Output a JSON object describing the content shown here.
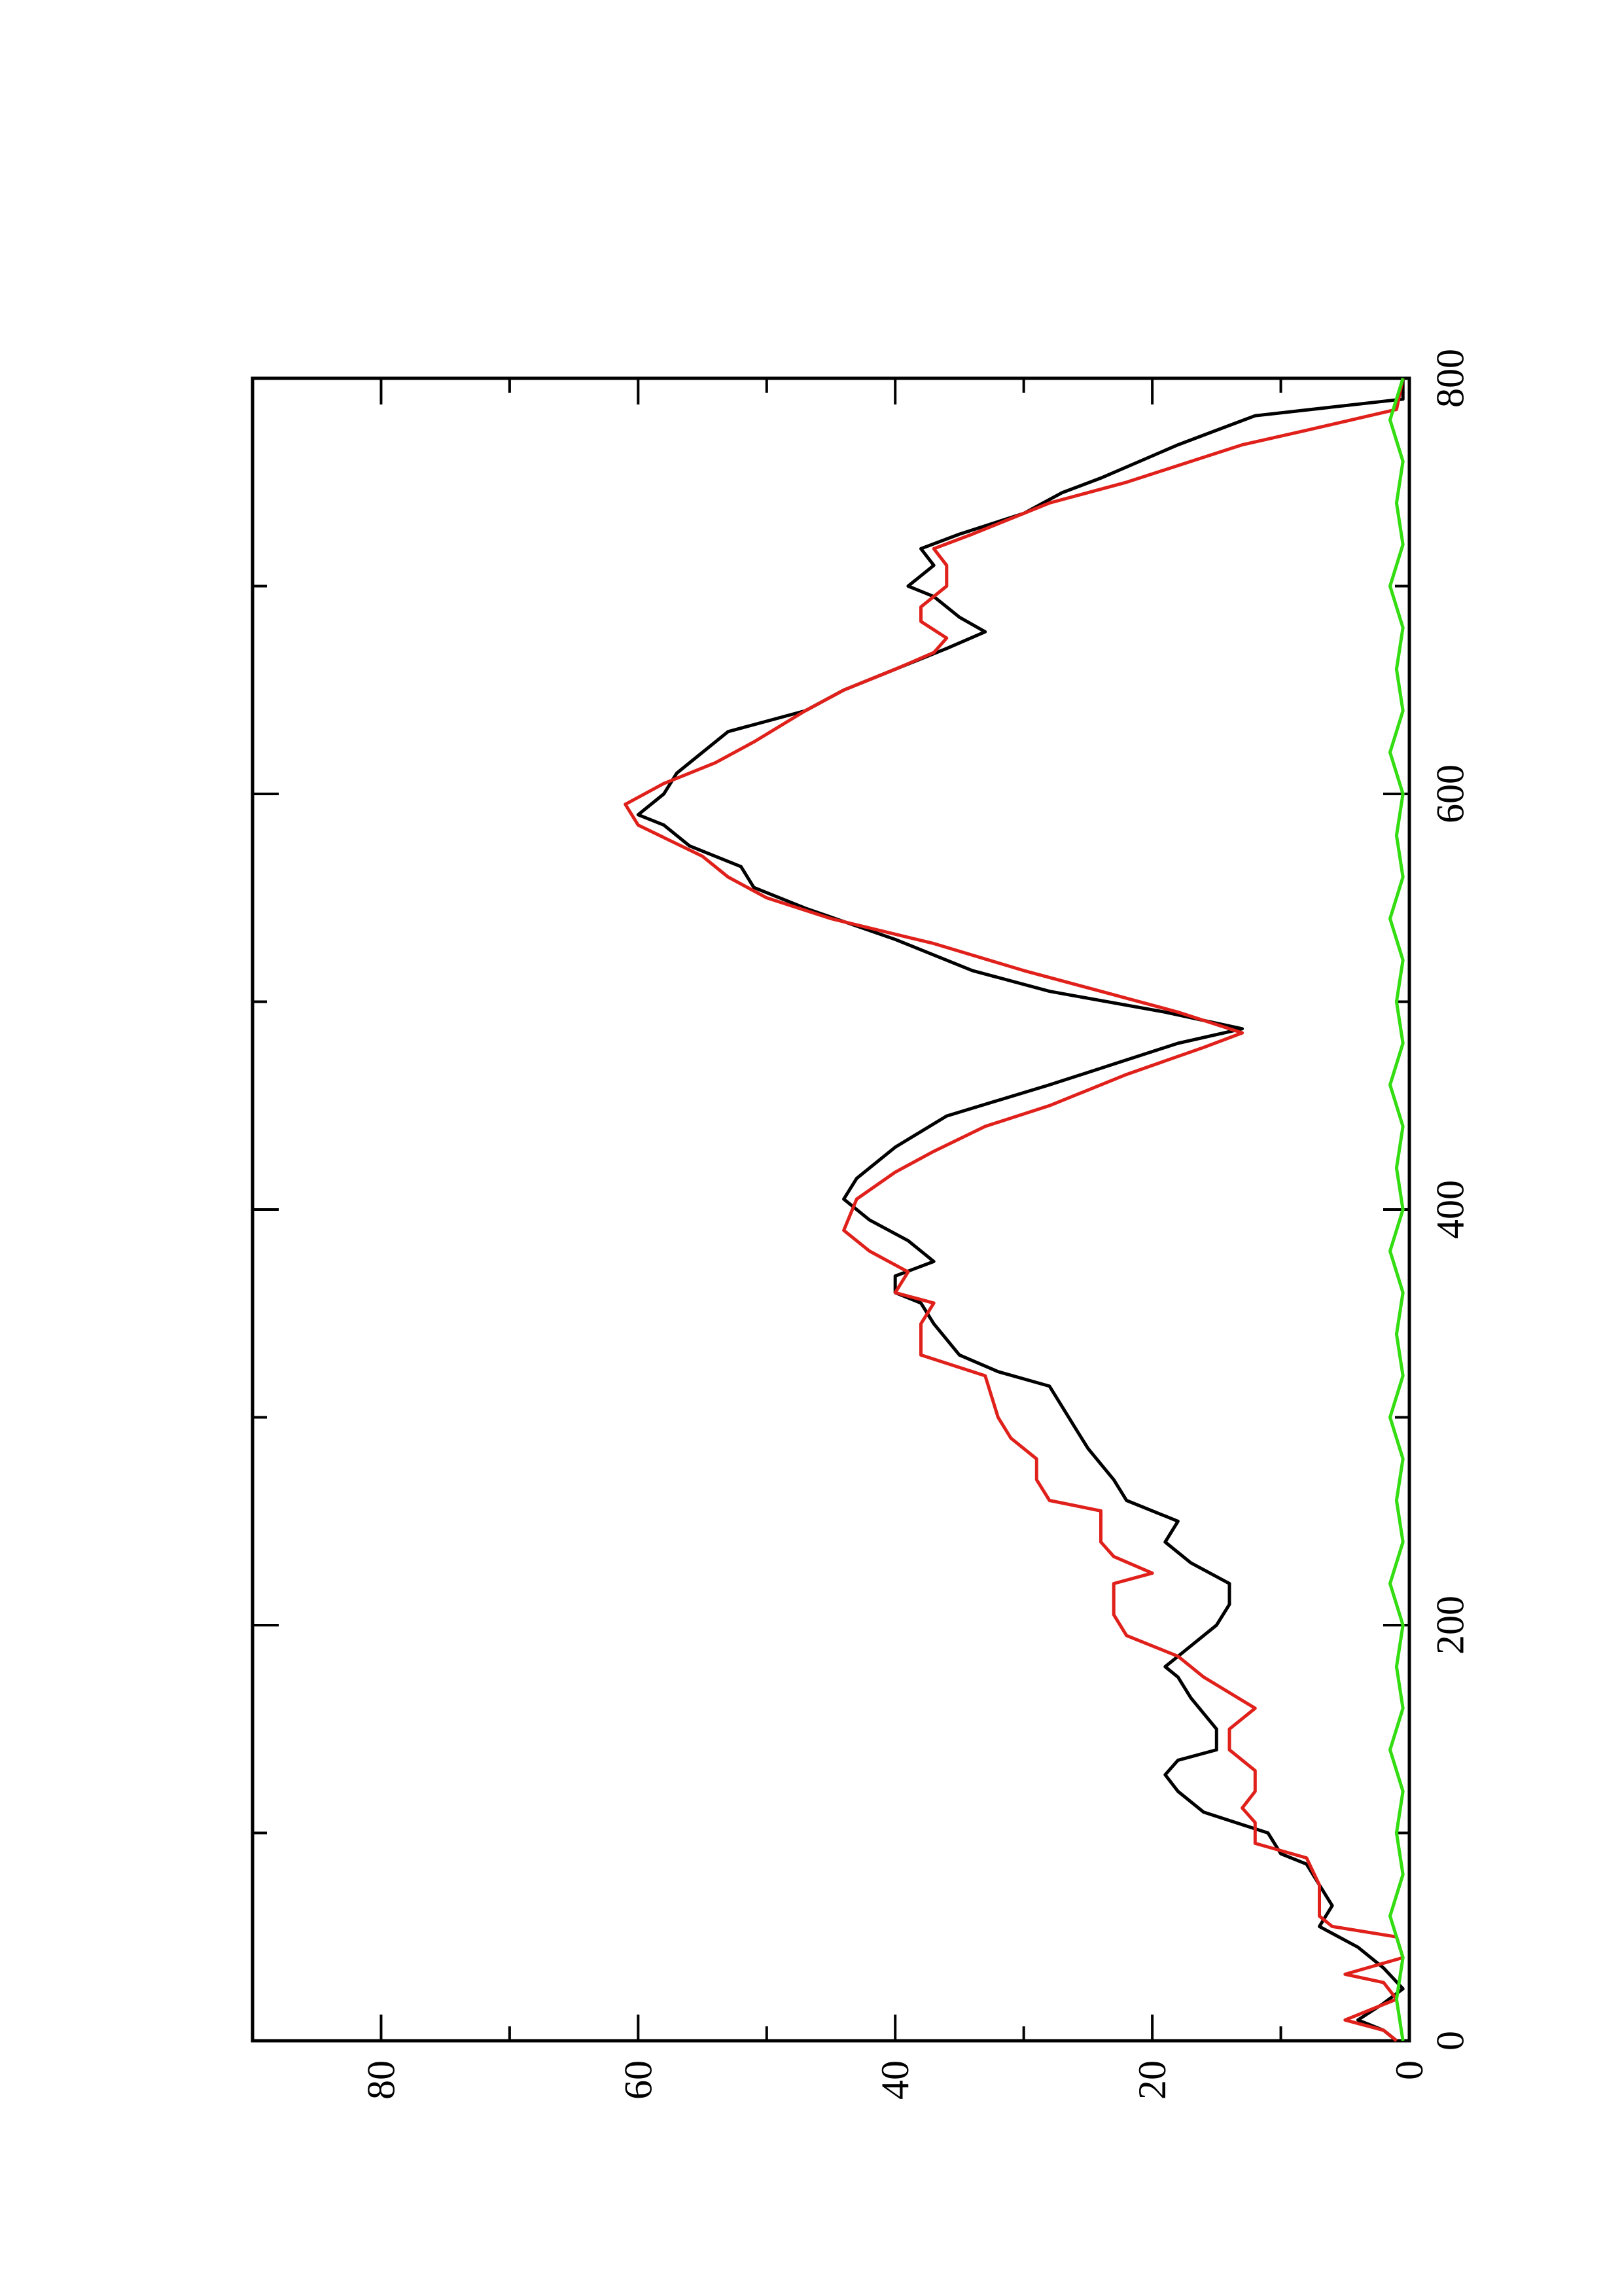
{
  "chart_data": {
    "type": "line",
    "orientation": "rotated-90-ccw",
    "title": "",
    "xlabel": "",
    "ylabel": "",
    "xlim": [
      0,
      800
    ],
    "ylim": [
      0,
      90
    ],
    "x_ticks_major": [
      0,
      200,
      400,
      600,
      800
    ],
    "x_tick_labels": [
      "0",
      "200",
      "400",
      "600",
      "800"
    ],
    "x_ticks_minor": [
      100,
      300,
      500,
      700
    ],
    "y_ticks_major": [
      0,
      20,
      40,
      60,
      80
    ],
    "y_tick_labels": [
      "0",
      "20",
      "40",
      "60",
      "80"
    ],
    "y_ticks_minor": [
      10,
      30,
      50,
      70
    ],
    "grid": false,
    "legend": "none",
    "series": [
      {
        "color": "#000000",
        "points": [
          [
            0,
            1
          ],
          [
            5,
            2
          ],
          [
            10,
            4
          ],
          [
            18,
            2
          ],
          [
            25,
            0.5
          ],
          [
            35,
            2
          ],
          [
            45,
            4
          ],
          [
            55,
            7
          ],
          [
            65,
            6
          ],
          [
            75,
            7
          ],
          [
            85,
            8
          ],
          [
            90,
            10
          ],
          [
            100,
            11
          ],
          [
            110,
            16
          ],
          [
            120,
            18
          ],
          [
            128,
            19
          ],
          [
            135,
            18
          ],
          [
            140,
            15
          ],
          [
            150,
            15
          ],
          [
            165,
            17
          ],
          [
            175,
            18
          ],
          [
            180,
            19
          ],
          [
            190,
            17
          ],
          [
            200,
            15
          ],
          [
            210,
            14
          ],
          [
            220,
            14
          ],
          [
            230,
            17
          ],
          [
            240,
            19
          ],
          [
            250,
            18
          ],
          [
            260,
            22
          ],
          [
            270,
            23
          ],
          [
            285,
            25
          ],
          [
            295,
            26
          ],
          [
            315,
            28
          ],
          [
            322,
            32
          ],
          [
            330,
            35
          ],
          [
            345,
            37
          ],
          [
            355,
            38
          ],
          [
            360,
            40
          ],
          [
            368,
            40
          ],
          [
            375,
            37
          ],
          [
            385,
            39
          ],
          [
            395,
            42
          ],
          [
            405,
            44
          ],
          [
            415,
            43
          ],
          [
            430,
            40
          ],
          [
            445,
            36
          ],
          [
            460,
            28
          ],
          [
            470,
            23
          ],
          [
            480,
            18
          ],
          [
            487,
            13
          ],
          [
            495,
            19
          ],
          [
            505,
            28
          ],
          [
            515,
            34
          ],
          [
            530,
            40
          ],
          [
            545,
            47
          ],
          [
            555,
            51
          ],
          [
            565,
            52
          ],
          [
            575,
            56
          ],
          [
            585,
            58
          ],
          [
            590,
            60
          ],
          [
            600,
            58
          ],
          [
            610,
            57
          ],
          [
            620,
            55
          ],
          [
            630,
            53
          ],
          [
            640,
            47
          ],
          [
            650,
            44
          ],
          [
            660,
            40
          ],
          [
            670,
            36
          ],
          [
            678,
            33
          ],
          [
            685,
            35
          ],
          [
            695,
            37
          ],
          [
            700,
            39
          ],
          [
            710,
            37
          ],
          [
            718,
            38
          ],
          [
            725,
            35
          ],
          [
            735,
            30
          ],
          [
            745,
            27
          ],
          [
            752,
            24
          ],
          [
            760,
            21
          ],
          [
            768,
            18
          ],
          [
            775,
            15
          ],
          [
            782,
            12
          ],
          [
            790,
            0.5
          ],
          [
            800,
            0.5
          ]
        ]
      },
      {
        "color": "#e0201a",
        "points": [
          [
            0,
            1
          ],
          [
            5,
            2
          ],
          [
            10,
            5
          ],
          [
            20,
            1
          ],
          [
            28,
            2
          ],
          [
            32,
            5
          ],
          [
            40,
            0.5
          ],
          [
            50,
            1
          ],
          [
            55,
            6
          ],
          [
            60,
            7
          ],
          [
            75,
            7
          ],
          [
            88,
            8
          ],
          [
            95,
            12
          ],
          [
            105,
            12
          ],
          [
            112,
            13
          ],
          [
            120,
            12
          ],
          [
            130,
            12
          ],
          [
            140,
            14
          ],
          [
            150,
            14
          ],
          [
            160,
            12
          ],
          [
            175,
            16
          ],
          [
            185,
            18
          ],
          [
            195,
            22
          ],
          [
            205,
            23
          ],
          [
            220,
            23
          ],
          [
            225,
            20
          ],
          [
            233,
            23
          ],
          [
            240,
            24
          ],
          [
            255,
            24
          ],
          [
            260,
            28
          ],
          [
            270,
            29
          ],
          [
            280,
            29
          ],
          [
            290,
            31
          ],
          [
            300,
            32
          ],
          [
            320,
            33
          ],
          [
            330,
            38
          ],
          [
            345,
            38
          ],
          [
            355,
            37
          ],
          [
            360,
            40
          ],
          [
            370,
            39
          ],
          [
            380,
            42
          ],
          [
            390,
            44
          ],
          [
            405,
            43
          ],
          [
            418,
            40
          ],
          [
            428,
            37
          ],
          [
            440,
            33
          ],
          [
            450,
            28
          ],
          [
            465,
            22
          ],
          [
            478,
            16
          ],
          [
            485,
            13
          ],
          [
            495,
            18
          ],
          [
            505,
            24
          ],
          [
            515,
            30
          ],
          [
            528,
            37
          ],
          [
            540,
            45
          ],
          [
            550,
            50
          ],
          [
            560,
            53
          ],
          [
            570,
            55
          ],
          [
            585,
            60
          ],
          [
            595,
            61
          ],
          [
            605,
            58
          ],
          [
            615,
            54
          ],
          [
            625,
            51
          ],
          [
            640,
            47
          ],
          [
            650,
            44
          ],
          [
            660,
            40
          ],
          [
            668,
            37
          ],
          [
            675,
            36
          ],
          [
            683,
            38
          ],
          [
            690,
            38
          ],
          [
            700,
            36
          ],
          [
            710,
            36
          ],
          [
            718,
            37
          ],
          [
            725,
            34
          ],
          [
            740,
            28
          ],
          [
            750,
            22
          ],
          [
            760,
            17
          ],
          [
            768,
            13
          ],
          [
            775,
            8
          ],
          [
            785,
            1
          ],
          [
            800,
            0.5
          ]
        ]
      },
      {
        "color": "#33dd11",
        "points": [
          [
            0,
            0.5
          ],
          [
            20,
            1
          ],
          [
            40,
            0.5
          ],
          [
            60,
            1.5
          ],
          [
            80,
            0.5
          ],
          [
            100,
            1
          ],
          [
            120,
            0.5
          ],
          [
            140,
            1.5
          ],
          [
            160,
            0.5
          ],
          [
            180,
            1
          ],
          [
            200,
            0.5
          ],
          [
            220,
            1.5
          ],
          [
            240,
            0.5
          ],
          [
            260,
            1
          ],
          [
            280,
            0.5
          ],
          [
            300,
            1.5
          ],
          [
            320,
            0.5
          ],
          [
            340,
            1
          ],
          [
            360,
            0.5
          ],
          [
            380,
            1.5
          ],
          [
            400,
            0.5
          ],
          [
            420,
            1
          ],
          [
            440,
            0.5
          ],
          [
            460,
            1.5
          ],
          [
            480,
            0.5
          ],
          [
            500,
            1
          ],
          [
            520,
            0.5
          ],
          [
            540,
            1.5
          ],
          [
            560,
            0.5
          ],
          [
            580,
            1
          ],
          [
            600,
            0.5
          ],
          [
            620,
            1.5
          ],
          [
            640,
            0.5
          ],
          [
            660,
            1
          ],
          [
            680,
            0.5
          ],
          [
            700,
            1.5
          ],
          [
            720,
            0.5
          ],
          [
            740,
            1
          ],
          [
            760,
            0.5
          ],
          [
            780,
            1.5
          ],
          [
            800,
            0.5
          ]
        ]
      }
    ]
  }
}
